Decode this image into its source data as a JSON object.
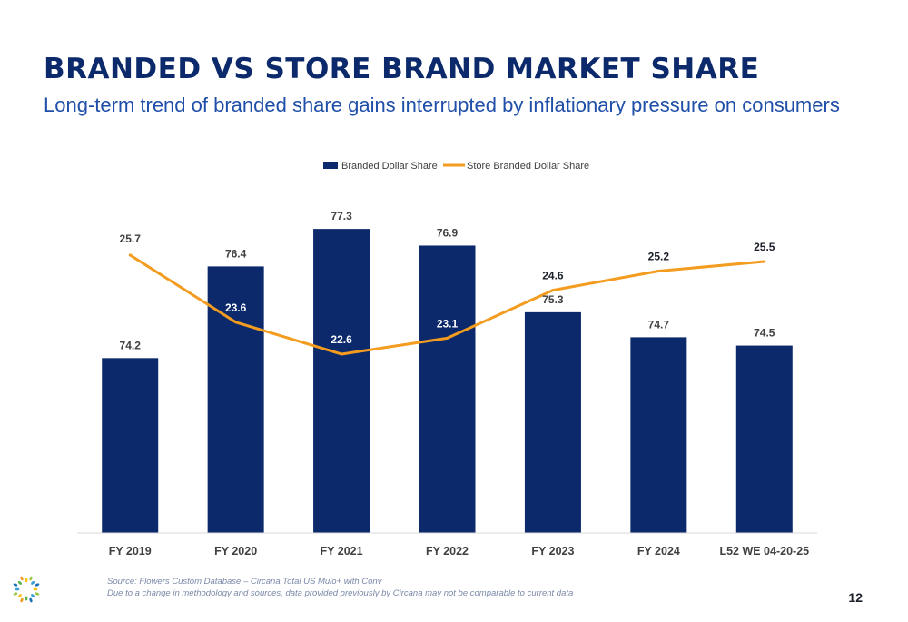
{
  "header": {
    "title": "BRANDED VS STORE BRAND MARKET SHARE",
    "subtitle": "Long-term trend of branded share gains interrupted by inflationary pressure on consumers"
  },
  "footer": {
    "source_line1": "Source: Flowers Custom Database – Circana Total US Mulo+ with Conv",
    "source_line2": "Due to a change in methodology and sources, data provided previously by Circana may not be comparable to current data",
    "page_number": "12"
  },
  "colors": {
    "bar": "#0c2a6b",
    "line": "#f39c1f",
    "title": "#0c2a6b",
    "subtitle": "#1f4fa8"
  },
  "logo_icon": "flowers-sunburst-icon",
  "chart_data": {
    "type": "bar",
    "categories": [
      "FY 2019",
      "FY 2020",
      "FY 2021",
      "FY 2022",
      "FY 2023",
      "FY 2024",
      "L52 WE 04-20-25"
    ],
    "series": [
      {
        "name": "Branded Dollar Share",
        "type": "bar",
        "values": [
          74.2,
          76.4,
          77.3,
          76.9,
          75.3,
          74.7,
          74.5
        ]
      },
      {
        "name": "Store Branded Dollar Share",
        "type": "line",
        "values": [
          25.7,
          23.6,
          22.6,
          23.1,
          24.6,
          25.2,
          25.5
        ]
      }
    ],
    "legend": "top-center",
    "grid": false,
    "bar_axis_range": [
      70,
      78
    ],
    "line_axis_range": [
      17,
      28
    ]
  }
}
